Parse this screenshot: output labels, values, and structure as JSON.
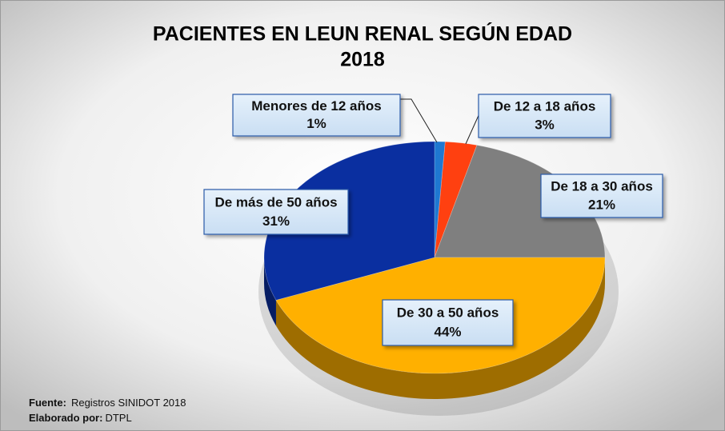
{
  "chart_data": {
    "type": "pie",
    "title": "PACIENTES EN LEUN RENAL SEGÚN EDAD",
    "subtitle": "2018",
    "categories": [
      "Menores de 12 años",
      "De 12 a 18 años",
      "De 18 a 30 años",
      "De 30 a 50 años",
      "De más de 50 años"
    ],
    "values": [
      1,
      3,
      21,
      44,
      31
    ],
    "value_labels": [
      "1%",
      "3%",
      "21%",
      "44%",
      "31%"
    ],
    "colors": [
      "#1f78d1",
      "#ff4010",
      "#7f7f7f",
      "#ffb000",
      "#0a2fa0"
    ],
    "source_label": "Fuente:",
    "source": "Registros SINIDOT 2018",
    "credit_label": "Elaborado por:",
    "credit": "DTPL"
  }
}
